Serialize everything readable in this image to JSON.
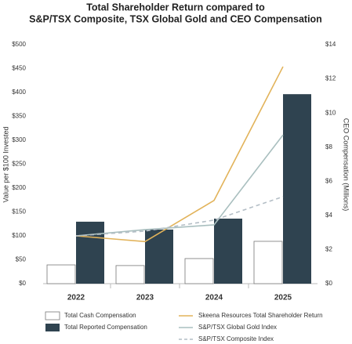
{
  "chart_data": {
    "type": "combo",
    "title": "Total Shareholder Return compared to",
    "subtitle": "S&P/TSX Composite, TSX Global Gold and CEO Compensation",
    "y_label": "Value per $100 Invested",
    "y2_label": "CEO Compensation (Millions)",
    "categories": [
      "2022",
      "2023",
      "2024",
      "2025"
    ],
    "ylim": [
      0,
      500
    ],
    "yticks": [
      {
        "value": 0,
        "label": "$0"
      },
      {
        "value": 50,
        "label": "$50"
      },
      {
        "value": 100,
        "label": "$100"
      },
      {
        "value": 150,
        "label": "$150"
      },
      {
        "value": 200,
        "label": "$200"
      },
      {
        "value": 250,
        "label": "$250"
      },
      {
        "value": 300,
        "label": "$300"
      },
      {
        "value": 350,
        "label": "$350"
      },
      {
        "value": 400,
        "label": "$400"
      },
      {
        "value": 450,
        "label": "$450"
      },
      {
        "value": 500,
        "label": "$500"
      }
    ],
    "y2lim": [
      0,
      14
    ],
    "y2ticks": [
      {
        "value": 0,
        "label": "$0"
      },
      {
        "value": 2,
        "label": "$2"
      },
      {
        "value": 4,
        "label": "$4"
      },
      {
        "value": 6,
        "label": "$6"
      },
      {
        "value": 8,
        "label": "$8"
      },
      {
        "value": 10,
        "label": "$10"
      },
      {
        "value": 12,
        "label": "$12"
      },
      {
        "value": 14,
        "label": "$14"
      }
    ],
    "series": [
      {
        "name": "Total Cash Compensation",
        "type": "bar",
        "axis": "y2",
        "color": "#ffffff",
        "values": [
          1.1,
          1.06,
          1.47,
          2.48
        ]
      },
      {
        "name": "Total Reported Compensation",
        "type": "bar",
        "axis": "y2",
        "color": "#2f4350",
        "values": [
          3.63,
          3.17,
          3.81,
          11.1
        ]
      },
      {
        "name": "Skeena Resources Total Shareholder Return",
        "type": "line",
        "color": "#e2b35a",
        "dashed": false,
        "values": [
          100,
          88,
          174,
          454
        ]
      },
      {
        "name": "S&P/TSX Global Gold Index",
        "type": "line",
        "color": "#a9bfbf",
        "dashed": false,
        "values": [
          100,
          113,
          123,
          311
        ]
      },
      {
        "name": "S&P/TSX Composite Index",
        "type": "line",
        "color": "#b4bec6",
        "dashed": true,
        "values": [
          100,
          110,
          133,
          182
        ]
      }
    ]
  }
}
